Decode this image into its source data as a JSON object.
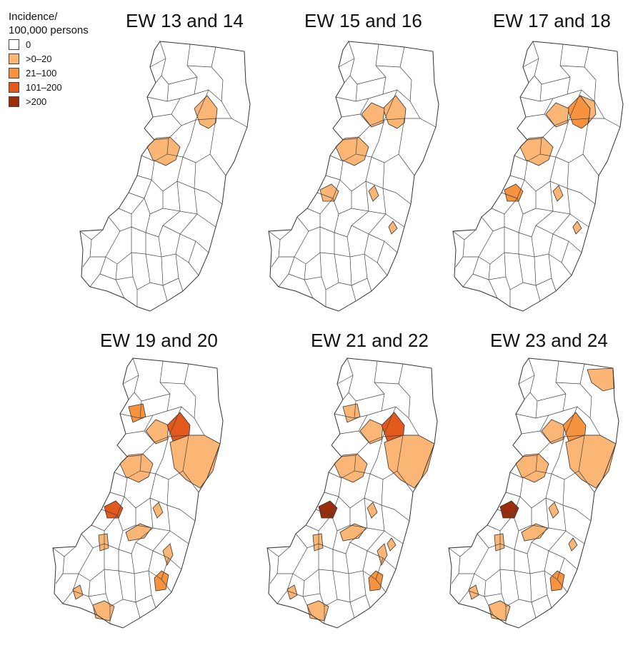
{
  "legend": {
    "title_line1": "Incidence/",
    "title_line2": "100,000 persons",
    "items": [
      {
        "label": "0",
        "color": "#ffffff"
      },
      {
        "label": ">0–20",
        "color": "#fbb574"
      },
      {
        "label": "21–100",
        "color": "#f7923f"
      },
      {
        "label": "101–200",
        "color": "#e3581b"
      },
      {
        "label": ">200",
        "color": "#9b2d0b"
      }
    ]
  },
  "panels": [
    {
      "title": "EW 13 and 14",
      "regions": [
        {
          "id": "center-west",
          "cls": 1
        },
        {
          "id": "northeast-inner",
          "cls": 1
        }
      ]
    },
    {
      "title": "EW 15 and 16",
      "regions": [
        {
          "id": "center-west",
          "cls": 1
        },
        {
          "id": "northeast-inner",
          "cls": 1
        },
        {
          "id": "north-center",
          "cls": 1
        },
        {
          "id": "west",
          "cls": 1
        },
        {
          "id": "center-east",
          "cls": 1
        },
        {
          "id": "coast-mid",
          "cls": 1
        }
      ]
    },
    {
      "title": "EW 17 and 18",
      "regions": [
        {
          "id": "center-west",
          "cls": 1
        },
        {
          "id": "northeast-inner",
          "cls": 2
        },
        {
          "id": "north-center",
          "cls": 1
        },
        {
          "id": "northeast-outer",
          "cls": 1
        },
        {
          "id": "west",
          "cls": 2
        },
        {
          "id": "center-east",
          "cls": 1
        },
        {
          "id": "coast-mid",
          "cls": 1
        }
      ]
    },
    {
      "title": "EW 19 and 20",
      "regions": [
        {
          "id": "north-west",
          "cls": 2
        },
        {
          "id": "center-west",
          "cls": 1
        },
        {
          "id": "north-center",
          "cls": 1
        },
        {
          "id": "northeast-inner",
          "cls": 3
        },
        {
          "id": "east-big",
          "cls": 1
        },
        {
          "id": "west",
          "cls": 3
        },
        {
          "id": "center-east",
          "cls": 1
        },
        {
          "id": "south-central",
          "cls": 1
        },
        {
          "id": "south-west-edge",
          "cls": 1
        },
        {
          "id": "south-east",
          "cls": 2
        },
        {
          "id": "south-coast",
          "cls": 1
        },
        {
          "id": "far-south",
          "cls": 1
        },
        {
          "id": "far-south-b",
          "cls": 1
        }
      ]
    },
    {
      "title": "EW 21 and 22",
      "regions": [
        {
          "id": "north-west",
          "cls": 1
        },
        {
          "id": "center-west",
          "cls": 1
        },
        {
          "id": "north-center",
          "cls": 1
        },
        {
          "id": "northeast-inner",
          "cls": 3
        },
        {
          "id": "east-big",
          "cls": 1
        },
        {
          "id": "west",
          "cls": 4
        },
        {
          "id": "center-east",
          "cls": 1
        },
        {
          "id": "south-central",
          "cls": 1
        },
        {
          "id": "coast-mid",
          "cls": 1
        },
        {
          "id": "south-east",
          "cls": 2
        },
        {
          "id": "south-coast",
          "cls": 1
        },
        {
          "id": "south-west-edge",
          "cls": 1
        },
        {
          "id": "far-south",
          "cls": 1
        },
        {
          "id": "far-south-b",
          "cls": 1
        }
      ]
    },
    {
      "title": "EW 23 and 24",
      "regions": [
        {
          "id": "far-north",
          "cls": 1
        },
        {
          "id": "center-west",
          "cls": 1
        },
        {
          "id": "north-center",
          "cls": 1
        },
        {
          "id": "northeast-inner",
          "cls": 2
        },
        {
          "id": "east-big",
          "cls": 1
        },
        {
          "id": "west",
          "cls": 4
        },
        {
          "id": "center-east",
          "cls": 1
        },
        {
          "id": "south-central",
          "cls": 1
        },
        {
          "id": "coast-mid",
          "cls": 1
        },
        {
          "id": "south-east",
          "cls": 2
        },
        {
          "id": "south-west-edge",
          "cls": 1
        },
        {
          "id": "far-south",
          "cls": 1
        },
        {
          "id": "far-south-b",
          "cls": 1
        }
      ]
    }
  ]
}
